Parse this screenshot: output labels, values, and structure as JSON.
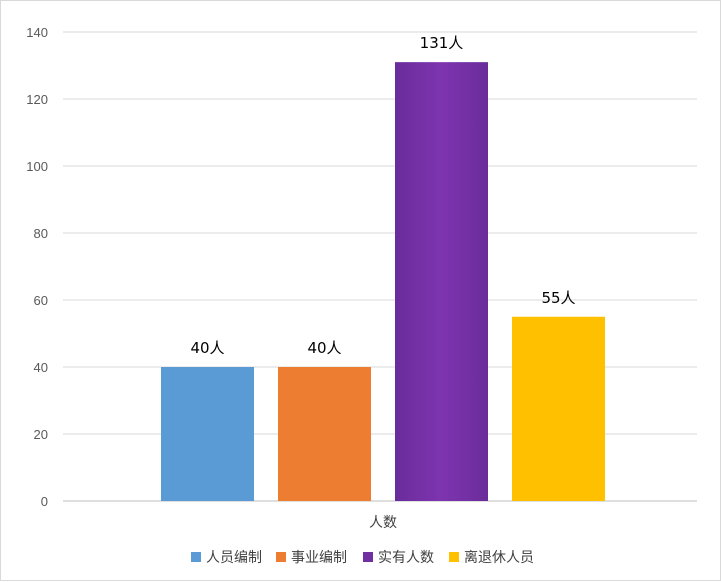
{
  "chart_data": {
    "type": "bar",
    "categories": [
      "人数"
    ],
    "series": [
      {
        "name": "人员编制",
        "values": [
          40
        ],
        "color": "#5b9bd5",
        "data_label": "40人"
      },
      {
        "name": "事业编制",
        "values": [
          40
        ],
        "color": "#ed7d31",
        "data_label": "40人"
      },
      {
        "name": "实有人数",
        "values": [
          131
        ],
        "color": "#7030a0",
        "data_label": "131人"
      },
      {
        "name": "离退休人员",
        "values": [
          55
        ],
        "color": "#ffc000",
        "data_label": "55人"
      }
    ],
    "title": "",
    "xlabel": "",
    "ylabel": "",
    "ylim": [
      0,
      140
    ],
    "yticks": [
      "0",
      "20",
      "40",
      "60",
      "80",
      "100",
      "120",
      "140"
    ],
    "grid": true,
    "legend_position": "bottom"
  }
}
